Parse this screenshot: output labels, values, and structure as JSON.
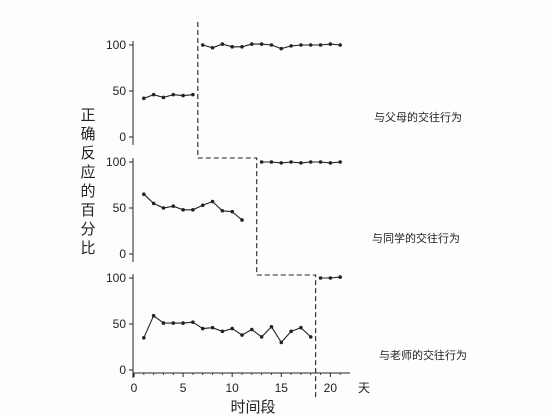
{
  "chart_data": {
    "type": "line",
    "ylabel": "正确反应的百分比",
    "xlabel": "时间段",
    "x_unit": "天",
    "xlim": [
      0,
      22
    ],
    "x_ticks": [
      0,
      5,
      10,
      15,
      20
    ],
    "ylim": [
      0,
      100
    ],
    "y_ticks": [
      0,
      50,
      100
    ],
    "phase_change_lines": [
      6,
      12,
      18
    ],
    "panels": [
      {
        "name": "与父母的交往行为",
        "baseline": {
          "x": [
            1,
            2,
            3,
            4,
            5,
            6
          ],
          "y": [
            42,
            46,
            43,
            46,
            45,
            46
          ]
        },
        "treatment": {
          "x": [
            7,
            8,
            9,
            10,
            11,
            12,
            13,
            14,
            15,
            16,
            17,
            18,
            19,
            20,
            21
          ],
          "y": [
            100,
            97,
            101,
            98,
            98,
            101,
            101,
            100,
            96,
            99,
            100,
            100,
            100,
            101,
            100
          ]
        }
      },
      {
        "name": "与同学的交往行为",
        "baseline": {
          "x": [
            1,
            2,
            3,
            4,
            5,
            6,
            7,
            8,
            9,
            10,
            11
          ],
          "y": [
            65,
            55,
            50,
            52,
            48,
            48,
            53,
            57,
            47,
            46,
            37
          ]
        },
        "treatment": {
          "x": [
            13,
            14,
            15,
            16,
            17,
            18,
            19,
            20,
            21
          ],
          "y": [
            100,
            100,
            99,
            100,
            99,
            100,
            100,
            99,
            100
          ]
        }
      },
      {
        "name": "与老师的交往行为",
        "baseline": {
          "x": [
            1,
            2,
            3,
            4,
            5,
            6,
            7,
            8,
            9,
            10,
            11,
            12,
            13,
            14,
            15,
            16,
            17,
            18
          ],
          "y": [
            35,
            59,
            51,
            51,
            51,
            52,
            45,
            46,
            42,
            45,
            38,
            44,
            36,
            47,
            30,
            42,
            46,
            36
          ]
        },
        "treatment": {
          "x": [
            19,
            20,
            21
          ],
          "y": [
            100,
            100,
            101
          ]
        }
      }
    ]
  }
}
